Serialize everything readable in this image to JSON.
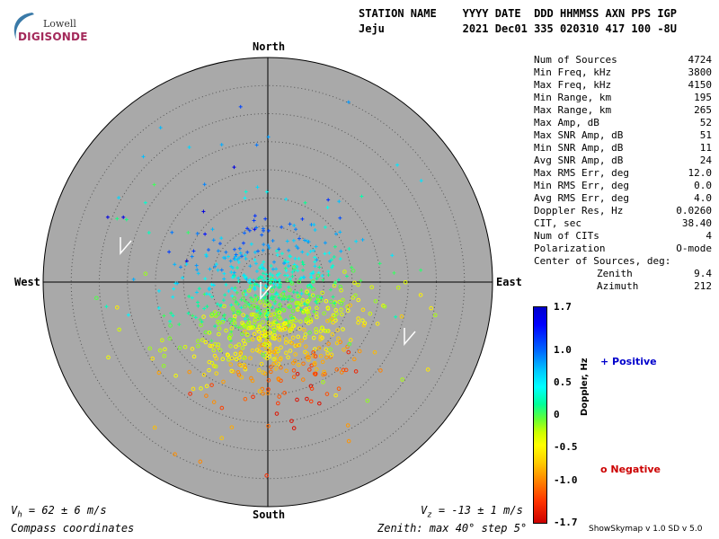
{
  "logo": {
    "top": "Lowell",
    "bottom": "DIGISONDE"
  },
  "header": {
    "line1": "STATION NAME    YYYY DATE  DDD HHMMSS AXN PPS IGP",
    "line2": "Jeju            2021 Dec01 335 020310 417 100 -8U"
  },
  "directions": {
    "north": "North",
    "south": "South",
    "west": "West",
    "east": "East"
  },
  "stats": [
    {
      "label": "Num of Sources",
      "value": "4724"
    },
    {
      "label": "Min Freq, kHz",
      "value": "3800"
    },
    {
      "label": "Max Freq, kHz",
      "value": "4150"
    },
    {
      "label": "Min Range, km",
      "value": "195"
    },
    {
      "label": "Max Range, km",
      "value": "265"
    },
    {
      "label": "Max Amp, dB",
      "value": "52"
    },
    {
      "label": "Max SNR Amp, dB",
      "value": "51"
    },
    {
      "label": "Min SNR Amp, dB",
      "value": "11"
    },
    {
      "label": "Avg SNR Amp, dB",
      "value": "24"
    },
    {
      "label": "Max RMS Err, deg",
      "value": "12.0"
    },
    {
      "label": "Min RMS Err, deg",
      "value": "0.0"
    },
    {
      "label": "Avg RMS Err, deg",
      "value": "4.0"
    },
    {
      "label": "Doppler Res, Hz",
      "value": "0.0260"
    },
    {
      "label": "CIT, sec",
      "value": "38.40"
    },
    {
      "label": "Num of CITs",
      "value": "4"
    },
    {
      "label": "Polarization",
      "value": "O-mode"
    }
  ],
  "center": {
    "title": "Center of Sources, deg:",
    "zenith_label": "Zenith",
    "zenith_value": "9.4",
    "azimuth_label": "Azimuth",
    "azimuth_value": "212"
  },
  "colorbar": {
    "title": "Doppler, Hz",
    "ticks": [
      "1.7",
      "1.0",
      "0.5",
      "0",
      "-0.5",
      "-1.0",
      "-1.7"
    ]
  },
  "legend": {
    "positive": "+ Positive",
    "negative": "o Negative"
  },
  "footer": {
    "vh": "V",
    "vh_sub": "h",
    "vh_rest": " = 62 ± 6 m/s",
    "vz": "V",
    "vz_sub": "z",
    "vz_rest": " = -13 ± 1 m/s",
    "compass": "Compass coordinates",
    "zenith": "Zenith: max 40°  step 5°",
    "version": "ShowSkymap v 1.0   SD v 5.0"
  },
  "colors": {
    "disc": "#a9a9a9",
    "ring": "#555555"
  },
  "chart_data": {
    "type": "scatter",
    "projection": "polar skymap",
    "zenith_max_deg": 40,
    "zenith_step_deg": 5,
    "center_of_sources": {
      "zenith_deg": 9.4,
      "azimuth_deg": 212
    },
    "num_sources": 4724,
    "color_scale": {
      "quantity": "Doppler, Hz",
      "min": -1.7,
      "max": 1.7
    },
    "velocity_vectors_shown": 4
  }
}
